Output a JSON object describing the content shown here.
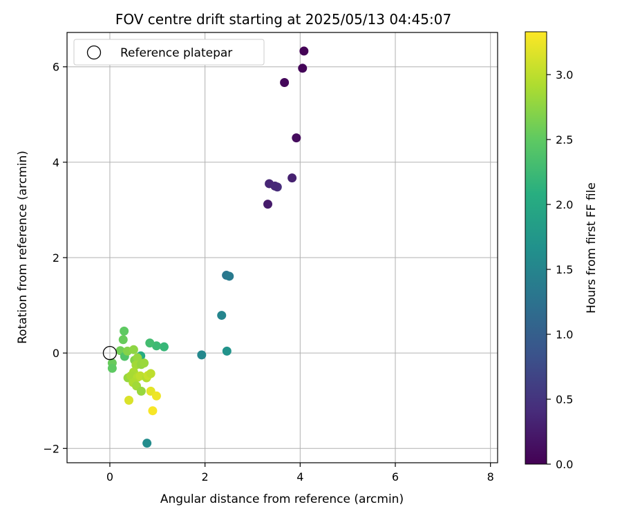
{
  "chart_data": {
    "type": "scatter",
    "title": "FOV centre drift starting at 2025/05/13 04:45:07",
    "xlabel": "Angular distance from reference (arcmin)",
    "ylabel": "Rotation from reference (arcmin)",
    "xlim": [
      -0.9,
      8.15
    ],
    "ylim": [
      -2.3,
      6.72
    ],
    "xticks": [
      "0",
      "2",
      "4",
      "6",
      "8"
    ],
    "xtick_values": [
      0,
      2,
      4,
      6,
      8
    ],
    "yticks": [
      "−2",
      "0",
      "2",
      "4",
      "6"
    ],
    "ytick_values": [
      -2,
      0,
      2,
      4,
      6
    ],
    "grid": true,
    "legend": {
      "placement": "top-left",
      "label": "Reference platepar"
    },
    "reference_point": {
      "x": 0,
      "y": 0
    },
    "colorbar": {
      "label": "Hours from first FF file",
      "min": 0.0,
      "max": 3.33,
      "ticks": [
        "0.0",
        "0.5",
        "1.0",
        "1.5",
        "2.0",
        "2.5",
        "3.0"
      ],
      "tick_values": [
        0,
        0.5,
        1.0,
        1.5,
        2.0,
        2.5,
        3.0
      ],
      "colormap": "viridis"
    },
    "points": [
      {
        "x": 4.08,
        "y": 6.33,
        "c": 0.02
      },
      {
        "x": 4.05,
        "y": 5.97,
        "c": 0.04
      },
      {
        "x": 3.67,
        "y": 5.67,
        "c": 0.06
      },
      {
        "x": 3.92,
        "y": 4.51,
        "c": 0.1
      },
      {
        "x": 3.83,
        "y": 3.67,
        "c": 0.3
      },
      {
        "x": 3.35,
        "y": 3.55,
        "c": 0.35
      },
      {
        "x": 3.52,
        "y": 3.48,
        "c": 0.42
      },
      {
        "x": 3.47,
        "y": 3.5,
        "c": 0.38
      },
      {
        "x": 3.32,
        "y": 3.12,
        "c": 0.25
      },
      {
        "x": 2.45,
        "y": 1.63,
        "c": 1.3
      },
      {
        "x": 2.51,
        "y": 1.61,
        "c": 1.35
      },
      {
        "x": 2.35,
        "y": 0.79,
        "c": 1.5
      },
      {
        "x": 1.93,
        "y": -0.04,
        "c": 1.55
      },
      {
        "x": 2.46,
        "y": 0.04,
        "c": 1.7
      },
      {
        "x": 1.14,
        "y": 0.13,
        "c": 2.2
      },
      {
        "x": 0.98,
        "y": 0.15,
        "c": 2.25
      },
      {
        "x": 0.84,
        "y": 0.21,
        "c": 2.3
      },
      {
        "x": 0.65,
        "y": -0.06,
        "c": 2.05
      },
      {
        "x": 0.3,
        "y": 0.46,
        "c": 2.5
      },
      {
        "x": 0.28,
        "y": 0.28,
        "c": 2.55
      },
      {
        "x": 0.22,
        "y": 0.05,
        "c": 2.6
      },
      {
        "x": 0.31,
        "y": -0.07,
        "c": 2.4
      },
      {
        "x": 0.05,
        "y": -0.21,
        "c": 2.55
      },
      {
        "x": 0.05,
        "y": -0.32,
        "c": 2.5
      },
      {
        "x": 0.37,
        "y": 0.04,
        "c": 2.7
      },
      {
        "x": 0.5,
        "y": 0.07,
        "c": 2.75
      },
      {
        "x": 0.52,
        "y": -0.15,
        "c": 2.7
      },
      {
        "x": 0.58,
        "y": -0.1,
        "c": 2.8
      },
      {
        "x": 0.55,
        "y": -0.25,
        "c": 2.85
      },
      {
        "x": 0.66,
        "y": -0.24,
        "c": 2.78
      },
      {
        "x": 0.72,
        "y": -0.21,
        "c": 2.82
      },
      {
        "x": 0.5,
        "y": -0.4,
        "c": 2.9
      },
      {
        "x": 0.38,
        "y": -0.52,
        "c": 2.8
      },
      {
        "x": 0.44,
        "y": -0.48,
        "c": 2.88
      },
      {
        "x": 0.58,
        "y": -0.51,
        "c": 2.95
      },
      {
        "x": 0.64,
        "y": -0.48,
        "c": 3.0
      },
      {
        "x": 0.49,
        "y": -0.62,
        "c": 2.92
      },
      {
        "x": 0.56,
        "y": -0.69,
        "c": 2.85
      },
      {
        "x": 0.66,
        "y": -0.8,
        "c": 2.8
      },
      {
        "x": 0.77,
        "y": -0.52,
        "c": 2.95
      },
      {
        "x": 0.8,
        "y": -0.47,
        "c": 3.05
      },
      {
        "x": 0.86,
        "y": -0.43,
        "c": 3.0
      },
      {
        "x": 0.4,
        "y": -0.99,
        "c": 3.15
      },
      {
        "x": 0.86,
        "y": -0.8,
        "c": 3.2
      },
      {
        "x": 0.98,
        "y": -0.9,
        "c": 3.25
      },
      {
        "x": 0.9,
        "y": -1.21,
        "c": 3.3
      },
      {
        "x": 0.78,
        "y": -1.89,
        "c": 1.6
      }
    ]
  }
}
